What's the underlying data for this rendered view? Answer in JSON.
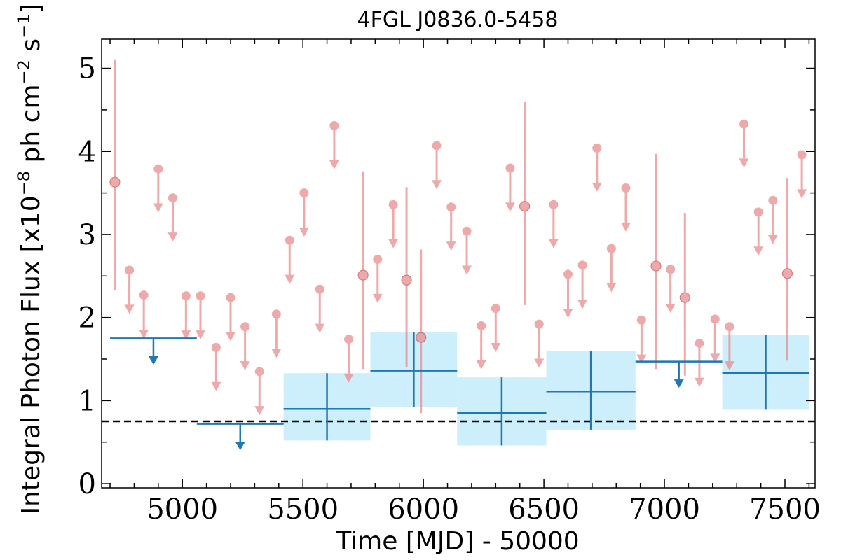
{
  "chart_data": {
    "type": "scatter",
    "title": "4FGL J0836.0-5458",
    "xlabel": "Time [MJD] - 50000",
    "ylabel_main": "Integral Photon Flux [x10",
    "ylabel_exp1": "−8",
    "ylabel_mid": " ph cm",
    "ylabel_exp2": "−2",
    "ylabel_end": " s",
    "ylabel_exp3": "−1",
    "ylabel_close": "]",
    "xlim": [
      4665,
      7625
    ],
    "ylim": [
      -0.05,
      5.35
    ],
    "xticks": [
      5000,
      5500,
      6000,
      6500,
      7000,
      7500
    ],
    "xtick_labels": [
      "5000",
      "5500",
      "6000",
      "6500",
      "7000",
      "7500"
    ],
    "yticks": [
      0,
      1,
      2,
      3,
      4,
      5
    ],
    "ytick_labels": [
      "0",
      "1",
      "2",
      "3",
      "4",
      "5"
    ],
    "reference_level": 0.75,
    "colors": {
      "short_bins": "#e8888a",
      "long_bins": "#1f77b4",
      "band": "#cdeefb",
      "reference": "#000000"
    },
    "short_bin_upper_limits": [
      {
        "x": 4780,
        "y": 2.57
      },
      {
        "x": 4840,
        "y": 2.27
      },
      {
        "x": 4900,
        "y": 3.79
      },
      {
        "x": 4960,
        "y": 3.44
      },
      {
        "x": 5015,
        "y": 2.26
      },
      {
        "x": 5075,
        "y": 2.26
      },
      {
        "x": 5140,
        "y": 1.64
      },
      {
        "x": 5200,
        "y": 2.24
      },
      {
        "x": 5260,
        "y": 1.89
      },
      {
        "x": 5320,
        "y": 1.35
      },
      {
        "x": 5390,
        "y": 2.04
      },
      {
        "x": 5445,
        "y": 2.93
      },
      {
        "x": 5505,
        "y": 3.5
      },
      {
        "x": 5570,
        "y": 2.34
      },
      {
        "x": 5630,
        "y": 4.31
      },
      {
        "x": 5690,
        "y": 1.74
      },
      {
        "x": 5810,
        "y": 2.7
      },
      {
        "x": 5875,
        "y": 3.36
      },
      {
        "x": 6055,
        "y": 4.07
      },
      {
        "x": 6115,
        "y": 3.33
      },
      {
        "x": 6180,
        "y": 3.04
      },
      {
        "x": 6240,
        "y": 1.9
      },
      {
        "x": 6300,
        "y": 2.11
      },
      {
        "x": 6360,
        "y": 3.8
      },
      {
        "x": 6480,
        "y": 1.92
      },
      {
        "x": 6540,
        "y": 3.36
      },
      {
        "x": 6600,
        "y": 2.52
      },
      {
        "x": 6660,
        "y": 2.63
      },
      {
        "x": 6720,
        "y": 4.04
      },
      {
        "x": 6780,
        "y": 2.83
      },
      {
        "x": 6840,
        "y": 3.56
      },
      {
        "x": 6905,
        "y": 1.97
      },
      {
        "x": 7025,
        "y": 2.58
      },
      {
        "x": 7145,
        "y": 1.69
      },
      {
        "x": 7210,
        "y": 1.98
      },
      {
        "x": 7270,
        "y": 1.89
      },
      {
        "x": 7330,
        "y": 4.33
      },
      {
        "x": 7390,
        "y": 3.27
      },
      {
        "x": 7450,
        "y": 3.41
      },
      {
        "x": 7570,
        "y": 3.96
      }
    ],
    "short_bin_detections": [
      {
        "x": 4720,
        "y": 3.63,
        "ylo": 2.33,
        "yhi": 5.1
      },
      {
        "x": 5750,
        "y": 2.51,
        "ylo": 1.38,
        "yhi": 3.76
      },
      {
        "x": 5930,
        "y": 2.45,
        "ylo": 1.4,
        "yhi": 3.57
      },
      {
        "x": 5990,
        "y": 1.76,
        "ylo": 0.85,
        "yhi": 2.82
      },
      {
        "x": 6420,
        "y": 3.34,
        "ylo": 2.15,
        "yhi": 4.6
      },
      {
        "x": 6965,
        "y": 2.62,
        "ylo": 1.38,
        "yhi": 3.97
      },
      {
        "x": 7085,
        "y": 2.24,
        "ylo": 1.3,
        "yhi": 3.26
      },
      {
        "x": 7510,
        "y": 2.53,
        "ylo": 1.48,
        "yhi": 3.68
      }
    ],
    "long_bin_upper_limits": [
      {
        "x0": 4700,
        "x1": 5060,
        "y": 1.75
      },
      {
        "x0": 5060,
        "x1": 5420,
        "y": 0.72
      },
      {
        "x0": 6880,
        "x1": 7240,
        "y": 1.47
      }
    ],
    "long_bin_detections": [
      {
        "x0": 5420,
        "x1": 5780,
        "y": 0.9,
        "ylo": 0.52,
        "yhi": 1.33
      },
      {
        "x0": 5780,
        "x1": 6140,
        "y": 1.36,
        "ylo": 0.92,
        "yhi": 1.82
      },
      {
        "x0": 6140,
        "x1": 6510,
        "y": 0.85,
        "ylo": 0.46,
        "yhi": 1.28
      },
      {
        "x0": 6510,
        "x1": 6880,
        "y": 1.11,
        "ylo": 0.65,
        "yhi": 1.6
      },
      {
        "x0": 7240,
        "x1": 7600,
        "y": 1.33,
        "ylo": 0.89,
        "yhi": 1.79
      }
    ]
  }
}
